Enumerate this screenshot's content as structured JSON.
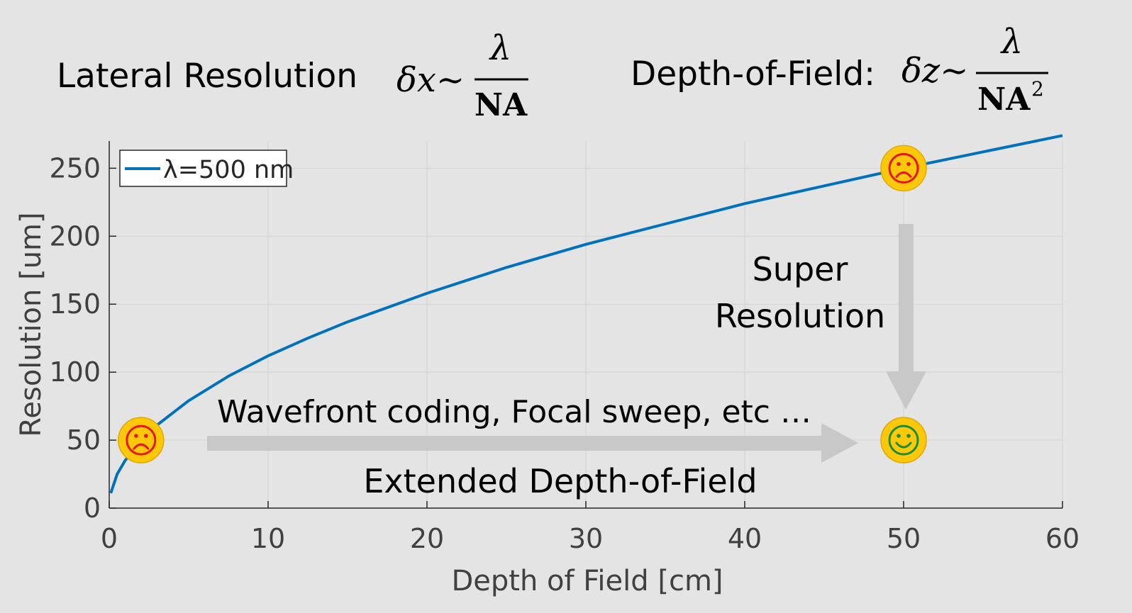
{
  "header": {
    "lateral_label": "Lateral Resolution",
    "lateral_formula": {
      "lhs": "δx∼",
      "numerator": "λ",
      "denominator": "NA"
    },
    "dof_label": "Depth-of-Field:",
    "dof_formula": {
      "lhs": "δz∼",
      "numerator": "λ",
      "denominator": "NA",
      "exponent": "2"
    }
  },
  "annotations": {
    "super_resolution_line1": "Super",
    "super_resolution_line2": "Resolution",
    "wavefront": "Wavefront coding, Focal sweep, etc …",
    "extended_dof": "Extended Depth-of-Field"
  },
  "markers": [
    {
      "kind": "sad",
      "x": 2,
      "y": 50
    },
    {
      "kind": "sad",
      "x": 50,
      "y": 250
    },
    {
      "kind": "happy",
      "x": 50,
      "y": 50
    }
  ],
  "colors": {
    "background": "#e4e4e4",
    "series": "#0072bd",
    "axis": "#262626",
    "grid": "#d2d2d2",
    "arrow": "#c8c8c8",
    "marker_fill": "#fdc80a",
    "sad_face": "#e8141e",
    "happy_face": "#1a8c3a"
  },
  "chart_data": {
    "type": "line",
    "xlabel": "Depth of Field [cm]",
    "ylabel": "Resolution [um]",
    "xlim": [
      0,
      60
    ],
    "ylim": [
      0,
      270
    ],
    "xticks": [
      0,
      10,
      20,
      30,
      40,
      50,
      60
    ],
    "yticks": [
      0,
      50,
      100,
      150,
      200,
      250
    ],
    "grid": true,
    "legend_position": "top-left",
    "series": [
      {
        "name": "λ=500 nm",
        "x": [
          0.1,
          0.5,
          1,
          2,
          3,
          5,
          7.5,
          10,
          12.5,
          15,
          20,
          25,
          30,
          35,
          40,
          45,
          50,
          55,
          60
        ],
        "values": [
          11,
          25,
          35,
          50,
          61,
          79,
          97,
          112,
          125,
          137,
          158,
          177,
          194,
          209,
          224,
          237,
          250,
          262,
          274
        ]
      }
    ]
  }
}
